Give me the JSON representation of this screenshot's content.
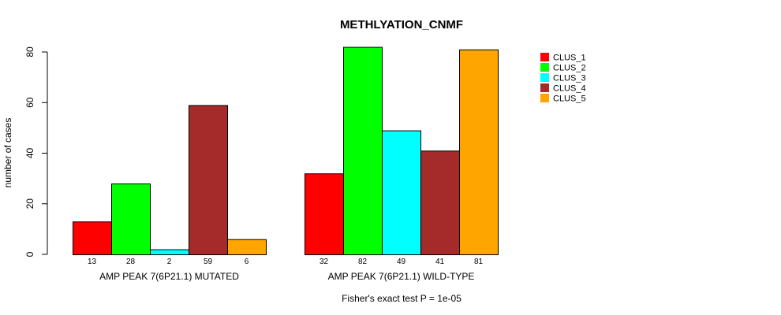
{
  "chart_data": {
    "type": "bar",
    "title": "METHLYATION_CNMF",
    "ylabel": "number of cases",
    "xlabel": "",
    "ylim": [
      0,
      80
    ],
    "yticks": [
      0,
      20,
      40,
      60,
      80
    ],
    "footnote": "Fisher's exact test P = 1e-05",
    "groups": [
      {
        "label": "AMP PEAK  7(6P21.1) MUTATED",
        "values": [
          13,
          28,
          2,
          59,
          6
        ]
      },
      {
        "label": "AMP PEAK  7(6P21.1) WILD-TYPE",
        "values": [
          32,
          82,
          49,
          41,
          81
        ]
      }
    ],
    "series": [
      {
        "name": "CLUS_1",
        "color": "#ff0000"
      },
      {
        "name": "CLUS_2",
        "color": "#00ff00"
      },
      {
        "name": "CLUS_3",
        "color": "#00ffff"
      },
      {
        "name": "CLUS_4",
        "color": "#a52a2a"
      },
      {
        "name": "CLUS_5",
        "color": "#ffa500"
      }
    ],
    "legend_position": "top-right"
  }
}
